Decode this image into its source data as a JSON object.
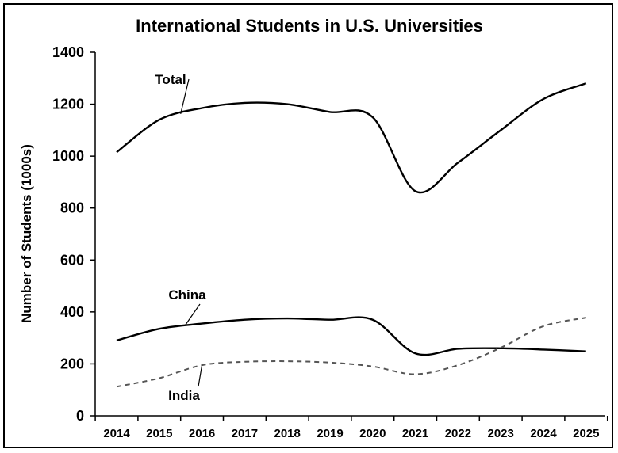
{
  "chart_data": {
    "type": "line",
    "title": "International Students in U.S. Universities",
    "xlabel": "",
    "ylabel": "Number of Students (1000s)",
    "ylim": [
      0,
      1400
    ],
    "yticks": [
      0,
      200,
      400,
      600,
      800,
      1000,
      1200,
      1400
    ],
    "x": [
      "2014",
      "2015",
      "2016",
      "2017",
      "2018",
      "2019",
      "2020",
      "2021",
      "2022",
      "2023",
      "2024",
      "2025"
    ],
    "grid": false,
    "series": [
      {
        "name": "Total",
        "style": "solid",
        "color": "#000000",
        "values": [
          1015,
          1140,
          1185,
          1205,
          1200,
          1170,
          1150,
          865,
          975,
          1100,
          1220,
          1280
        ]
      },
      {
        "name": "China",
        "style": "solid",
        "color": "#000000",
        "values": [
          290,
          335,
          355,
          370,
          375,
          370,
          370,
          240,
          258,
          260,
          255,
          248
        ]
      },
      {
        "name": "India",
        "style": "dashed",
        "color": "#555555",
        "values": [
          112,
          145,
          195,
          208,
          210,
          205,
          190,
          160,
          195,
          262,
          345,
          378
        ]
      }
    ]
  }
}
